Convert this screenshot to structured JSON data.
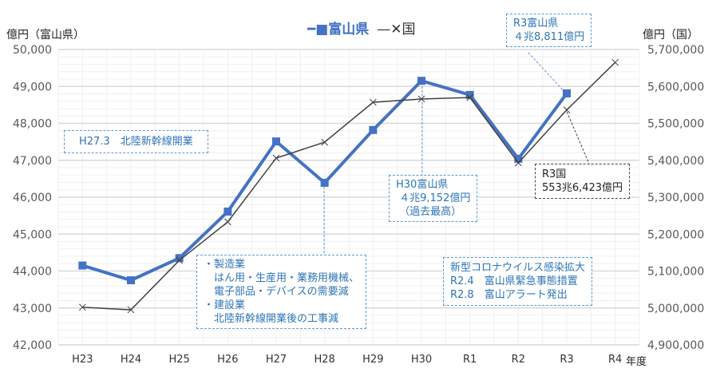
{
  "chart_data": {
    "type": "line",
    "categories": [
      "H23",
      "H24",
      "H25",
      "H26",
      "H27",
      "H28",
      "H29",
      "H30",
      "R1",
      "R2",
      "R3",
      "R4"
    ],
    "xlabel": "年度",
    "ylabel_left": "億円（富山県）",
    "ylabel_right": "億円（国）",
    "ylim_left": [
      42000,
      50000
    ],
    "ylim_right": [
      4900000,
      5700000
    ],
    "yticks_left": [
      "42,000",
      "43,000",
      "44,000",
      "45,000",
      "46,000",
      "47,000",
      "48,000",
      "49,000",
      "50,000"
    ],
    "yticks_right": [
      "4,900,000",
      "5,000,000",
      "5,100,000",
      "5,200,000",
      "5,300,000",
      "5,400,000",
      "5,500,000",
      "5,600,000",
      "5,700,000"
    ],
    "grid": true,
    "legend_position": "top",
    "series": [
      {
        "name": "富山県",
        "axis": "left",
        "color": "#4472c4",
        "marker": "square",
        "values": [
          44150,
          43750,
          44350,
          45610,
          47510,
          46390,
          47820,
          49152,
          48770,
          47040,
          48811,
          null
        ]
      },
      {
        "name": "国",
        "axis": "right",
        "color": "#404040",
        "marker": "x",
        "values": [
          5002000,
          4995000,
          5129000,
          5233000,
          5406000,
          5449000,
          5557000,
          5566000,
          5570000,
          5393000,
          5536423,
          5665000
        ]
      }
    ],
    "annotations": {
      "shinkansen": "H27.3　北陸新幹線開業",
      "r3_toyama": "R3富山県\n４兆8,811億円",
      "h30_toyama": "H30富山県\n ４兆9,152億円\n （過去最高）",
      "r3_kuni": "R3国\n553兆6,423億円",
      "h28_reason": "・製造業\n　はん用・生産用・業務用機械、\n　電子部品・デバイスの需要減\n・建設業\n　北陸新幹線開業後の工事減",
      "covid": "新型コロナウイルス感染拡大\nR2.4　富山県緊急事態措置\nR2.8　富山アラート発出"
    }
  }
}
